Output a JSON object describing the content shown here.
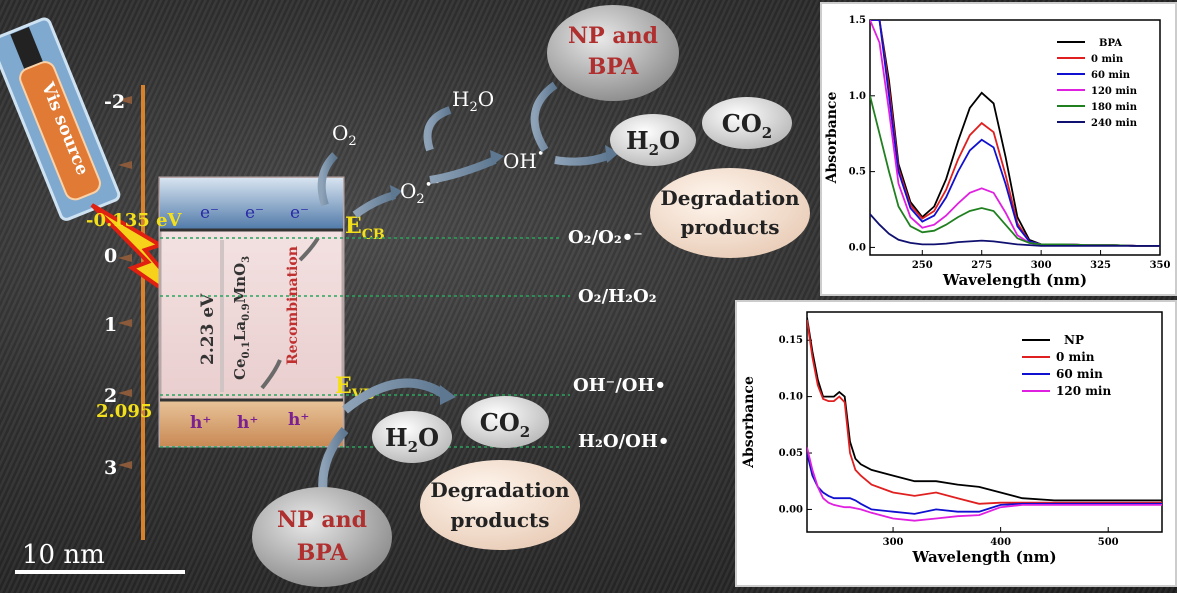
{
  "diagram": {
    "scale_bar": "10 nm",
    "light_source": "Vis source",
    "potential_ticks": [
      "-2",
      "0",
      "1",
      "2",
      "3"
    ],
    "cb_potential": "-0.135 eV",
    "vb_potential": "2.095",
    "electron": "e⁻",
    "hole": "h⁺",
    "band_gap": "2.23 eV",
    "material_prefix": "Ce",
    "material_sub1": "0.1",
    "material_mid": "La",
    "material_sub2": "0.9",
    "material_suffix": "MnO",
    "material_sub3": "3",
    "recombination": "Recombination",
    "e_cb": "E",
    "e_cb_sub": "CB",
    "e_vb": "E",
    "e_vb_sub": "VB",
    "o2": "O",
    "o2_sub": "2",
    "o2_radical": "O",
    "h2o": "H",
    "h2o_tail": "O",
    "oh_radical": "OH",
    "np_bpa_top": [
      "NP and",
      "BPA"
    ],
    "np_bpa_bottom": [
      "NP and",
      "BPA"
    ],
    "co2_top": "CO",
    "co2_bottom": "CO",
    "degradation_top": [
      "Degradation",
      "products"
    ],
    "degradation_bottom": [
      "Degradation",
      "products"
    ],
    "redox_o2_o2rad": "O₂/O₂•⁻",
    "redox_o2_h2o2": "O₂/H₂O₂",
    "redox_oh": "OH⁻/OH•",
    "redox_h2o_oh": "H₂O/OH•"
  },
  "chart_data": [
    {
      "type": "line",
      "xlabel": "Wavelength (nm)",
      "ylabel": "Absorbance",
      "xlim": [
        228,
        350
      ],
      "ylim": [
        -0.05,
        1.5
      ],
      "x_ticks": [
        250,
        275,
        300,
        325,
        350
      ],
      "y_ticks": [
        0.0,
        0.5,
        1.0,
        1.5
      ],
      "legend_position": "top-right",
      "series": [
        {
          "name": "BPA",
          "color": "#000000",
          "x": [
            228,
            232,
            236,
            240,
            245,
            250,
            255,
            260,
            265,
            270,
            275,
            280,
            285,
            290,
            295,
            300,
            310,
            320,
            330,
            340,
            350
          ],
          "y": [
            1.5,
            1.5,
            1.1,
            0.55,
            0.3,
            0.2,
            0.27,
            0.45,
            0.7,
            0.92,
            1.02,
            0.95,
            0.6,
            0.2,
            0.05,
            0.02,
            0.02,
            0.015,
            0.015,
            0.01,
            0.01
          ]
        },
        {
          "name": "0 min",
          "color": "#e02020",
          "x": [
            228,
            232,
            236,
            240,
            245,
            250,
            255,
            260,
            265,
            270,
            275,
            280,
            285,
            290,
            295,
            300,
            310,
            320,
            330,
            340,
            350
          ],
          "y": [
            1.5,
            1.5,
            1.05,
            0.52,
            0.28,
            0.19,
            0.24,
            0.38,
            0.58,
            0.74,
            0.82,
            0.76,
            0.48,
            0.16,
            0.04,
            0.02,
            0.02,
            0.015,
            0.015,
            0.01,
            0.01
          ]
        },
        {
          "name": "60 min",
          "color": "#1010d0",
          "x": [
            228,
            232,
            236,
            240,
            245,
            250,
            255,
            260,
            265,
            270,
            275,
            280,
            285,
            290,
            295,
            300,
            310,
            320,
            330,
            340,
            350
          ],
          "y": [
            1.5,
            1.5,
            1.0,
            0.5,
            0.26,
            0.17,
            0.21,
            0.33,
            0.5,
            0.64,
            0.71,
            0.66,
            0.42,
            0.14,
            0.04,
            0.02,
            0.02,
            0.015,
            0.015,
            0.01,
            0.01
          ]
        },
        {
          "name": "120 min",
          "color": "#e020e0",
          "x": [
            228,
            232,
            236,
            240,
            245,
            250,
            255,
            260,
            265,
            270,
            275,
            280,
            285,
            290,
            295,
            300,
            310,
            320,
            330,
            340,
            350
          ],
          "y": [
            1.5,
            1.35,
            0.9,
            0.42,
            0.2,
            0.13,
            0.15,
            0.21,
            0.29,
            0.36,
            0.39,
            0.36,
            0.23,
            0.08,
            0.03,
            0.02,
            0.02,
            0.015,
            0.015,
            0.01,
            0.01
          ]
        },
        {
          "name": "180 min",
          "color": "#208020",
          "x": [
            228,
            232,
            236,
            240,
            245,
            250,
            255,
            260,
            265,
            270,
            275,
            280,
            285,
            290,
            295,
            300,
            310,
            320,
            330,
            340,
            350
          ],
          "y": [
            1.0,
            0.75,
            0.5,
            0.27,
            0.14,
            0.1,
            0.11,
            0.15,
            0.2,
            0.24,
            0.26,
            0.24,
            0.15,
            0.06,
            0.03,
            0.02,
            0.02,
            0.015,
            0.015,
            0.01,
            0.01
          ]
        },
        {
          "name": "240 min",
          "color": "#101070",
          "x": [
            228,
            232,
            236,
            240,
            245,
            250,
            255,
            260,
            265,
            270,
            275,
            280,
            285,
            290,
            295,
            300,
            310,
            320,
            330,
            340,
            350
          ],
          "y": [
            0.22,
            0.15,
            0.09,
            0.05,
            0.03,
            0.02,
            0.02,
            0.025,
            0.035,
            0.04,
            0.045,
            0.04,
            0.03,
            0.02,
            0.015,
            0.01,
            0.01,
            0.01,
            0.01,
            0.01,
            0.01
          ]
        }
      ]
    },
    {
      "type": "line",
      "xlabel": "Wavelength (nm)",
      "ylabel": "Absorbance",
      "xlim": [
        220,
        550
      ],
      "ylim": [
        -0.02,
        0.175
      ],
      "x_ticks": [
        300,
        400,
        500
      ],
      "y_ticks": [
        0.0,
        0.05,
        0.1,
        0.15
      ],
      "legend_position": "top-right",
      "series": [
        {
          "name": "NP",
          "color": "#000000",
          "x": [
            220,
            225,
            230,
            235,
            240,
            245,
            250,
            255,
            260,
            265,
            270,
            280,
            300,
            320,
            340,
            360,
            380,
            400,
            420,
            450,
            500,
            550
          ],
          "y": [
            0.17,
            0.14,
            0.115,
            0.1,
            0.1,
            0.1,
            0.104,
            0.1,
            0.06,
            0.045,
            0.04,
            0.035,
            0.03,
            0.025,
            0.025,
            0.022,
            0.02,
            0.015,
            0.01,
            0.008,
            0.008,
            0.008
          ]
        },
        {
          "name": "0 min",
          "color": "#e02020",
          "x": [
            220,
            225,
            230,
            235,
            240,
            245,
            250,
            255,
            260,
            265,
            270,
            280,
            300,
            320,
            340,
            360,
            380,
            400,
            420,
            450,
            500,
            550
          ],
          "y": [
            0.168,
            0.135,
            0.11,
            0.098,
            0.096,
            0.096,
            0.1,
            0.095,
            0.05,
            0.035,
            0.03,
            0.022,
            0.015,
            0.012,
            0.015,
            0.01,
            0.005,
            0.006,
            0.006,
            0.006,
            0.006,
            0.006
          ]
        },
        {
          "name": "60 min",
          "color": "#1010d0",
          "x": [
            220,
            225,
            230,
            235,
            240,
            245,
            250,
            255,
            260,
            265,
            270,
            280,
            300,
            320,
            340,
            360,
            380,
            400,
            420,
            450,
            500,
            550
          ],
          "y": [
            0.05,
            0.03,
            0.02,
            0.015,
            0.012,
            0.01,
            0.01,
            0.01,
            0.01,
            0.008,
            0.005,
            0.0,
            -0.002,
            -0.004,
            0.0,
            -0.002,
            -0.002,
            0.004,
            0.005,
            0.005,
            0.005,
            0.005
          ]
        },
        {
          "name": "120 min",
          "color": "#e020e0",
          "x": [
            220,
            225,
            230,
            235,
            240,
            245,
            250,
            255,
            260,
            265,
            270,
            280,
            300,
            320,
            340,
            360,
            380,
            400,
            420,
            450,
            500,
            550
          ],
          "y": [
            0.055,
            0.035,
            0.02,
            0.01,
            0.006,
            0.004,
            0.003,
            0.002,
            0.002,
            0.001,
            0.0,
            -0.003,
            -0.008,
            -0.01,
            -0.008,
            -0.006,
            -0.005,
            0.002,
            0.004,
            0.004,
            0.004,
            0.004
          ]
        }
      ]
    }
  ]
}
